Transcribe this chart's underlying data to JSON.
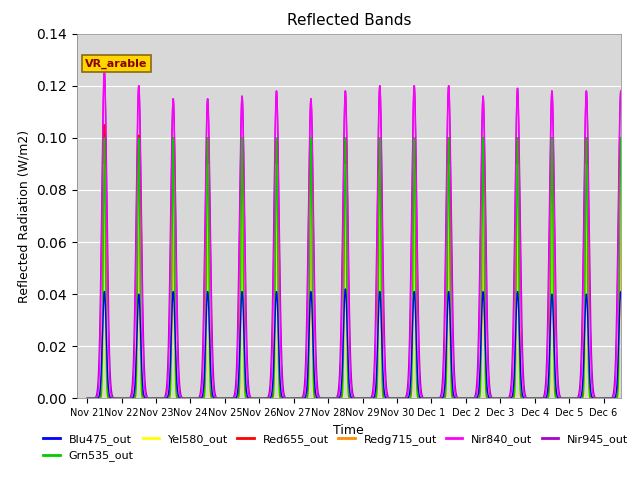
{
  "title": "Reflected Bands",
  "xlabel": "Time",
  "ylabel": "Reflected Radiation (W/m2)",
  "ylim": [
    0,
    0.14
  ],
  "annotation_text": "VR_arable",
  "annotation_color": "#8B0000",
  "annotation_bg": "#FFD700",
  "annotation_border": "#8B6914",
  "bg_color": "#D8D8D8",
  "series": [
    {
      "name": "Blu475_out",
      "color": "#0000FF"
    },
    {
      "name": "Grn535_out",
      "color": "#00CC00"
    },
    {
      "name": "Yel580_out",
      "color": "#FFFF00"
    },
    {
      "name": "Red655_out",
      "color": "#FF0000"
    },
    {
      "name": "Redg715_out",
      "color": "#FF8C00"
    },
    {
      "name": "Nir840_out",
      "color": "#FF00FF"
    },
    {
      "name": "Nir945_out",
      "color": "#AA00CC"
    }
  ],
  "num_days": 16,
  "xtick_labels": [
    "Nov 21",
    "Nov 22",
    "Nov 23",
    "Nov 24",
    "Nov 25",
    "Nov 26",
    "Nov 27",
    "Nov 28",
    "Nov 29",
    "Nov 30",
    "Dec 1",
    "Dec 2",
    "Dec 3",
    "Dec 4",
    "Dec 5",
    "Dec 6"
  ],
  "peaks": {
    "Blu475_out": [
      0.041,
      0.04,
      0.041,
      0.041,
      0.041,
      0.041,
      0.041,
      0.042,
      0.041,
      0.041,
      0.041,
      0.041,
      0.041,
      0.04,
      0.04,
      0.041
    ],
    "Grn535_out": [
      0.1,
      0.1,
      0.1,
      0.1,
      0.1,
      0.1,
      0.1,
      0.1,
      0.1,
      0.1,
      0.1,
      0.1,
      0.1,
      0.1,
      0.1,
      0.1
    ],
    "Yel580_out": [
      0.09,
      0.09,
      0.09,
      0.09,
      0.09,
      0.09,
      0.09,
      0.09,
      0.09,
      0.09,
      0.09,
      0.09,
      0.09,
      0.09,
      0.09,
      0.09
    ],
    "Red655_out": [
      0.105,
      0.101,
      0.1,
      0.1,
      0.1,
      0.099,
      0.097,
      0.1,
      0.1,
      0.1,
      0.1,
      0.1,
      0.1,
      0.1,
      0.1,
      0.1
    ],
    "Redg715_out": [
      0.08,
      0.075,
      0.065,
      0.069,
      0.069,
      0.076,
      0.072,
      0.072,
      0.075,
      0.075,
      0.068,
      0.069,
      0.068,
      0.067,
      0.067,
      0.068
    ],
    "Nir840_out": [
      0.127,
      0.12,
      0.115,
      0.115,
      0.116,
      0.118,
      0.115,
      0.118,
      0.12,
      0.12,
      0.12,
      0.116,
      0.119,
      0.118,
      0.118,
      0.118
    ],
    "Nir945_out": [
      0.125,
      0.12,
      0.115,
      0.115,
      0.116,
      0.118,
      0.115,
      0.118,
      0.12,
      0.12,
      0.12,
      0.116,
      0.119,
      0.118,
      0.118,
      0.118
    ]
  },
  "widths": {
    "Blu475_out": 0.055,
    "Grn535_out": 0.03,
    "Yel580_out": 0.025,
    "Red655_out": 0.035,
    "Redg715_out": 0.03,
    "Nir840_out": 0.065,
    "Nir945_out": 0.075
  }
}
